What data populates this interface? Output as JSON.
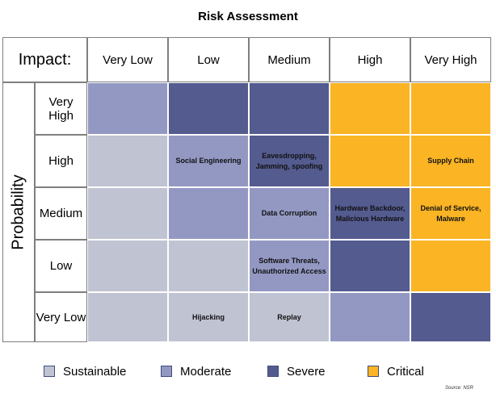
{
  "chart_data": {
    "type": "heatmap",
    "title": "Risk Assessment",
    "x_axis_label": "Impact:",
    "y_axis_label": "Probability",
    "x_categories": [
      "Very Low",
      "Low",
      "Medium",
      "High",
      "Very High"
    ],
    "y_categories": [
      "Very High",
      "High",
      "Medium",
      "Low",
      "Very Low"
    ],
    "levels": [
      {
        "name": "Sustainable",
        "color": "#c0c3d2"
      },
      {
        "name": "Moderate",
        "color": "#9398c3"
      },
      {
        "name": "Severe",
        "color": "#545b8f"
      },
      {
        "name": "Critical",
        "color": "#fab424"
      }
    ],
    "matrix": [
      [
        1,
        2,
        2,
        3,
        3
      ],
      [
        0,
        1,
        2,
        3,
        3
      ],
      [
        0,
        1,
        1,
        2,
        3
      ],
      [
        0,
        0,
        1,
        2,
        3
      ],
      [
        0,
        0,
        0,
        1,
        2
      ]
    ],
    "cell_labels": [
      [
        "",
        "",
        "",
        "",
        ""
      ],
      [
        "",
        "Social Engineering",
        "Eavesdropping, Jamming, spoofing",
        "",
        "Supply Chain"
      ],
      [
        "",
        "",
        "Data Corruption",
        "Hardware Backdoor, Malicious Hardware",
        "Denial of Service, Malware"
      ],
      [
        "",
        "",
        "Software Threats, Unauthorized Access",
        "",
        ""
      ],
      [
        "",
        "Hijacking",
        "Replay",
        "",
        ""
      ]
    ],
    "source": "Source: NSR"
  }
}
